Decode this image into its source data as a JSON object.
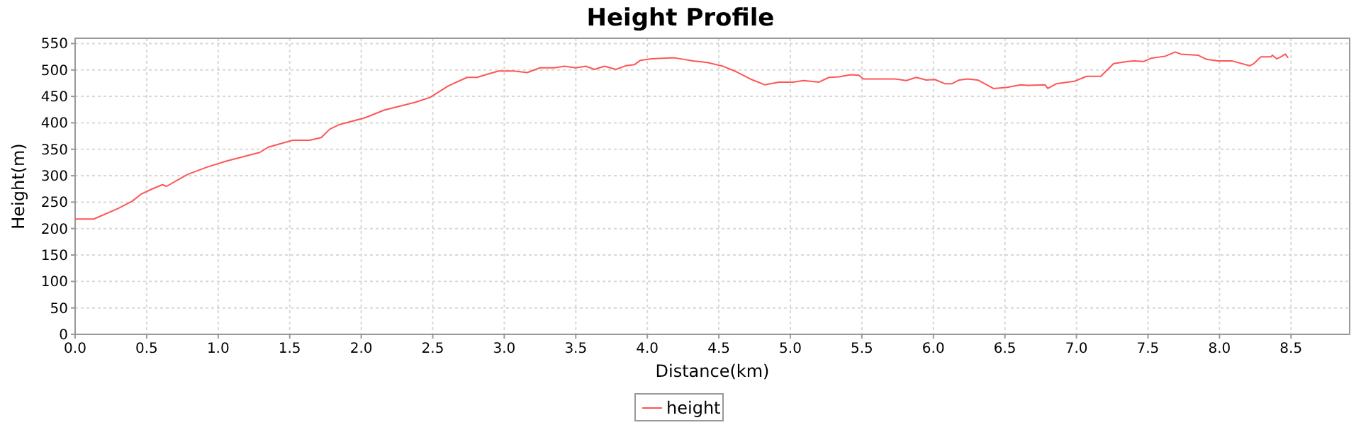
{
  "chart_data": {
    "type": "line",
    "title": "Height Profile",
    "xlabel": "Distance(km)",
    "ylabel": "Height(m)",
    "xlim": [
      0,
      8.91
    ],
    "xticks": [
      {
        "value": 0,
        "label": "0.0"
      },
      {
        "value": 0.5,
        "label": "0.5"
      },
      {
        "value": 1,
        "label": "1.0"
      },
      {
        "value": 1.5,
        "label": "1.5"
      },
      {
        "value": 2,
        "label": "2.0"
      },
      {
        "value": 2.5,
        "label": "2.5"
      },
      {
        "value": 3,
        "label": "3.0"
      },
      {
        "value": 3.5,
        "label": "3.5"
      },
      {
        "value": 4,
        "label": "4.0"
      },
      {
        "value": 4.5,
        "label": "4.5"
      },
      {
        "value": 5,
        "label": "5.0"
      },
      {
        "value": 5.5,
        "label": "5.5"
      },
      {
        "value": 6,
        "label": "6.0"
      },
      {
        "value": 6.5,
        "label": "6.5"
      },
      {
        "value": 7,
        "label": "7.0"
      },
      {
        "value": 7.5,
        "label": "7.5"
      },
      {
        "value": 8,
        "label": "8.0"
      },
      {
        "value": 8.5,
        "label": "8.5"
      }
    ],
    "ylim": [
      0,
      560
    ],
    "yticks": [
      0,
      50,
      100,
      150,
      200,
      250,
      300,
      350,
      400,
      450,
      500,
      550
    ],
    "grid": true,
    "legend": "bottom",
    "marker": "none",
    "line_style": "solid",
    "series": [
      {
        "name": "height",
        "color": "#ff5555",
        "x": [
          0,
          0.13,
          0.3,
          0.4,
          0.46,
          0.53,
          0.61,
          0.64,
          0.73,
          0.79,
          0.93,
          1.06,
          1.29,
          1.35,
          1.52,
          1.64,
          1.72,
          1.78,
          1.85,
          2.02,
          2.16,
          2.38,
          2.48,
          2.61,
          2.74,
          2.81,
          2.87,
          2.96,
          3.07,
          3.16,
          3.25,
          3.35,
          3.42,
          3.5,
          3.57,
          3.63,
          3.7,
          3.78,
          3.85,
          3.91,
          3.95,
          4.03,
          4.19,
          4.32,
          4.42,
          4.53,
          4.62,
          4.72,
          4.82,
          4.92,
          5.02,
          5.09,
          5.2,
          5.27,
          5.34,
          5.42,
          5.48,
          5.51,
          5.73,
          5.81,
          5.88,
          5.95,
          6.01,
          6.08,
          6.13,
          6.18,
          6.24,
          6.31,
          6.42,
          6.51,
          6.61,
          6.66,
          6.78,
          6.8,
          6.86,
          6.99,
          7.07,
          7.17,
          7.26,
          7.36,
          7.4,
          7.47,
          7.52,
          7.62,
          7.69,
          7.73,
          7.85,
          7.91,
          7.99,
          8.09,
          8.21,
          8.24,
          8.29,
          8.36,
          8.37,
          8.4,
          8.43,
          8.46,
          8.48
        ],
        "values": [
          218,
          218,
          238,
          252,
          265,
          274,
          283,
          280,
          294,
          303,
          317,
          328,
          344,
          354,
          367,
          367,
          372,
          388,
          397,
          409,
          424,
          439,
          448,
          470,
          486,
          486,
          491,
          498,
          498,
          495,
          504,
          504,
          507,
          504,
          507,
          501,
          507,
          501,
          508,
          510,
          518,
          521,
          523,
          517,
          514,
          507,
          497,
          483,
          472,
          477,
          477,
          480,
          477,
          486,
          487,
          491,
          490,
          483,
          483,
          480,
          486,
          481,
          482,
          474,
          474,
          481,
          483,
          481,
          465,
          467,
          472,
          471,
          472,
          465,
          474,
          479,
          488,
          488,
          512,
          516,
          517,
          516,
          522,
          526,
          534,
          530,
          528,
          520,
          517,
          517,
          508,
          512,
          525,
          525,
          528,
          521,
          525,
          530,
          523
        ]
      }
    ]
  }
}
